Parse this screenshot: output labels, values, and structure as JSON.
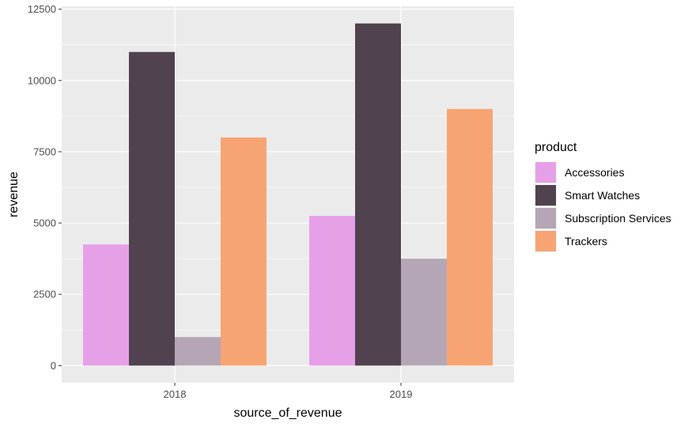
{
  "chart_data": {
    "type": "bar",
    "categories": [
      "2018",
      "2019"
    ],
    "series": [
      {
        "name": "Accessories",
        "values": [
          4250,
          5250
        ],
        "color": "#e6a0e8"
      },
      {
        "name": "Smart Watches",
        "values": [
          11000,
          12000
        ],
        "color": "#51424f"
      },
      {
        "name": "Subscription Services",
        "values": [
          1000,
          3750
        ],
        "color": "#b5a6b5"
      },
      {
        "name": "Trackers",
        "values": [
          8000,
          9000
        ],
        "color": "#f8a472"
      }
    ],
    "xlabel": "source_of_revenue",
    "ylabel": "revenue",
    "ylim": [
      -600,
      12600
    ],
    "yticks": [
      0,
      2500,
      5000,
      7500,
      10000,
      12500
    ],
    "ytick_labels": [
      "0",
      "2500",
      "5000",
      "7500",
      "10000",
      "12500"
    ],
    "legend_title": "product",
    "legend_position": "right",
    "grid": true,
    "panel_background": "#ebebeb",
    "grid_color": "#ffffff"
  }
}
